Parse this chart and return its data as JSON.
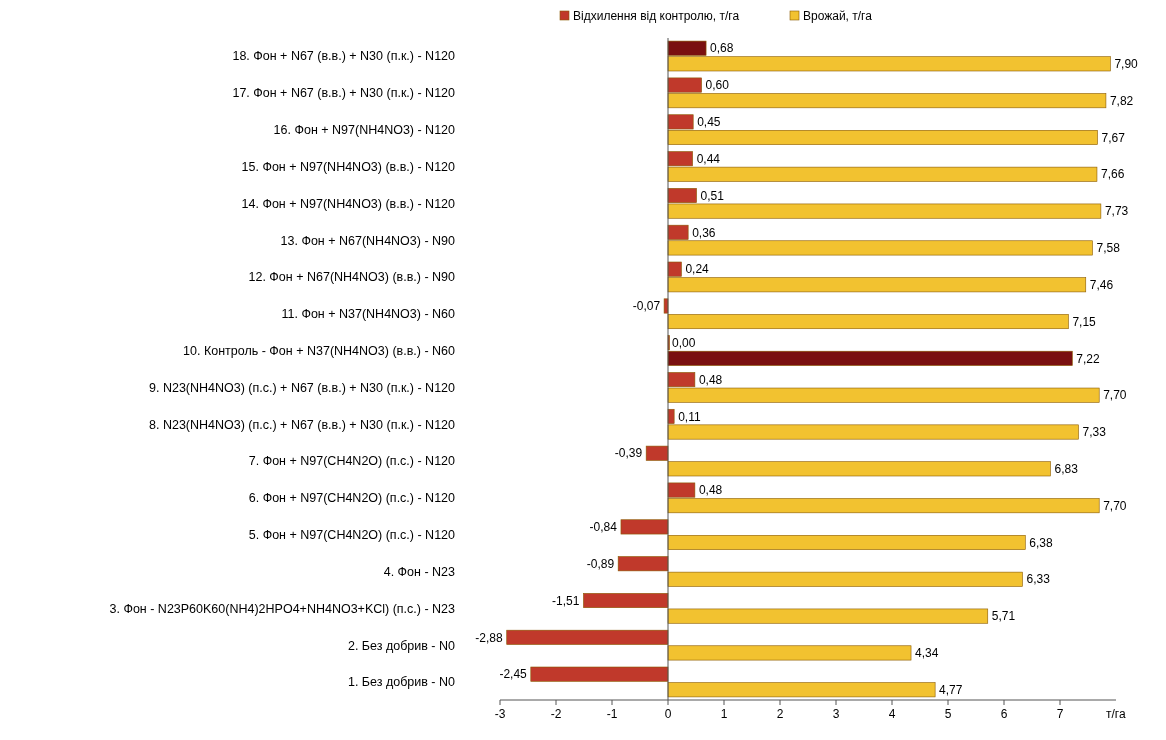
{
  "chart_data": {
    "type": "bar",
    "orientation": "horizontal",
    "legend": "top",
    "xlabel": "т/га",
    "categories": [
      "18. Фон + N67 (в.в.) + N30 (п.к.) - N120",
      "17. Фон + N67 (в.в.) + N30 (п.к.) - N120",
      "16. Фон + N97(NH4NO3) - N120",
      "15. Фон + N97(NH4NO3) (в.в.) - N120",
      "14. Фон + N97(NH4NO3) (в.в.) - N120",
      "13. Фон + N67(NH4NO3) - N90",
      "12. Фон + N67(NH4NO3) (в.в.) - N90",
      "11. Фон + N37(NH4NO3) - N60",
      "10. Контроль - Фон + N37(NH4NO3) (в.в.) - N60",
      "9. N23(NH4NO3) (п.с.) + N67 (в.в.) + N30 (п.к.) - N120",
      "8. N23(NH4NO3) (п.с.) + N67 (в.в.) + N30 (п.к.) - N120",
      "7. Фон + N97(CH4N2O) (п.с.) - N120",
      "6. Фон + N97(CH4N2O) (п.с.) - N120",
      "5. Фон + N97(CH4N2O) (п.с.) - N120",
      "4. Фон - N23",
      "3. Фон - N23P60K60(NH4)2HPO4+NH4NO3+KCl) (п.с.) - N23",
      "2. Без добрив - N0",
      "1. Без добрив - N0"
    ],
    "series": [
      {
        "name": "Відхилення від контролю, т/га",
        "color": "#c0392b",
        "colors": [
          "#7a1010",
          "#c0392b",
          "#c0392b",
          "#c0392b",
          "#c0392b",
          "#c0392b",
          "#c0392b",
          "#c0392b",
          "#c0392b",
          "#c0392b",
          "#c0392b",
          "#c0392b",
          "#c0392b",
          "#c0392b",
          "#c0392b",
          "#c0392b",
          "#c0392b",
          "#c0392b"
        ],
        "values": [
          0.68,
          0.6,
          0.45,
          0.44,
          0.51,
          0.36,
          0.24,
          -0.07,
          0.0,
          0.48,
          0.11,
          -0.39,
          0.48,
          -0.84,
          -0.89,
          -1.51,
          -2.88,
          -2.45
        ],
        "value_labels": [
          "0,68",
          "0,60",
          "0,45",
          "0,44",
          "0,51",
          "0,36",
          "0,24",
          "-0,07",
          "0,00",
          "0,48",
          "0,11",
          "-0,39",
          "0,48",
          "-0,84",
          "-0,89",
          "-1,51",
          "-2,88",
          "-2,45"
        ]
      },
      {
        "name": "Врожай, т/га",
        "color": "#f2c230",
        "colors": [
          "#f2c230",
          "#f2c230",
          "#f2c230",
          "#f2c230",
          "#f2c230",
          "#f2c230",
          "#f2c230",
          "#f2c230",
          "#7a1010",
          "#f2c230",
          "#f2c230",
          "#f2c230",
          "#f2c230",
          "#f2c230",
          "#f2c230",
          "#f2c230",
          "#f2c230",
          "#f2c230"
        ],
        "values": [
          7.9,
          7.82,
          7.67,
          7.66,
          7.73,
          7.58,
          7.46,
          7.15,
          7.22,
          7.7,
          7.33,
          6.83,
          7.7,
          6.38,
          6.33,
          5.71,
          4.34,
          4.77
        ],
        "value_labels": [
          "7,90",
          "7,82",
          "7,67",
          "7,66",
          "7,73",
          "7,58",
          "7,46",
          "7,15",
          "7,22",
          "7,70",
          "7,33",
          "6,83",
          "7,70",
          "6,38",
          "6,33",
          "5,71",
          "4,34",
          "4,77"
        ]
      }
    ],
    "xlim": [
      -3,
      8
    ],
    "xticks": [
      -3,
      -2,
      -1,
      0,
      1,
      2,
      3,
      4,
      5,
      6,
      7
    ]
  }
}
